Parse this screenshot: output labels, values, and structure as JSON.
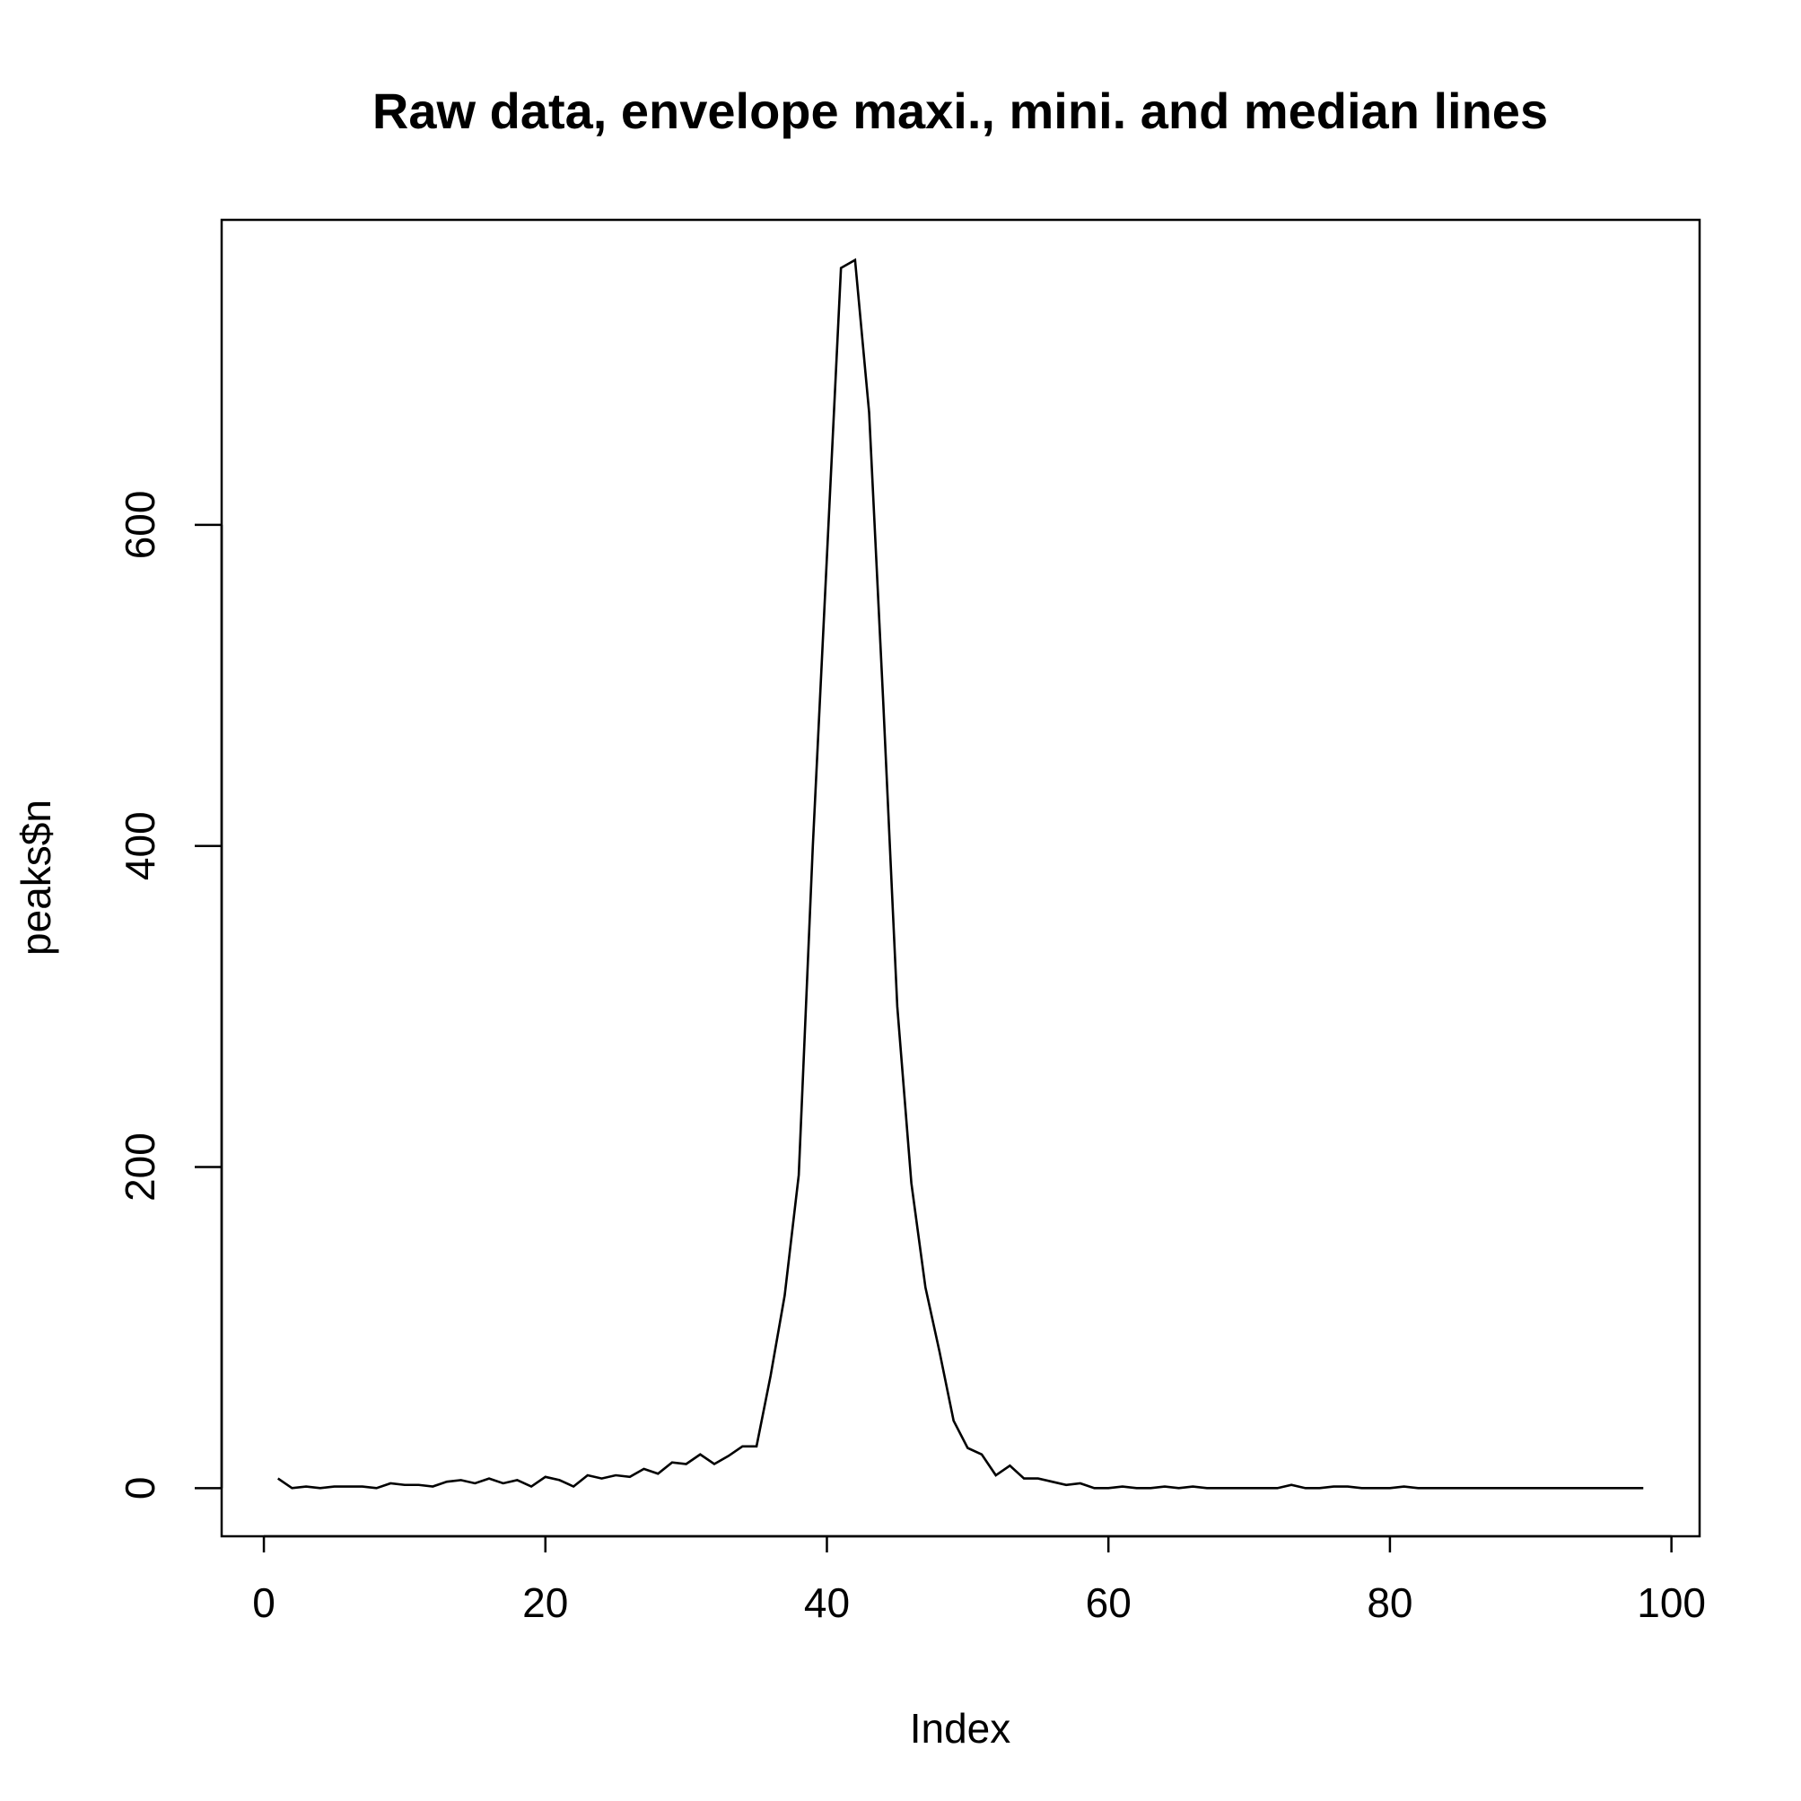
{
  "chart_data": {
    "type": "line",
    "title": "Raw data, envelope maxi., mini. and median lines",
    "xlabel": "Index",
    "ylabel": "peaks$n",
    "xlim": [
      -3,
      102
    ],
    "ylim": [
      -30,
      790
    ],
    "x_ticks": [
      0,
      20,
      40,
      60,
      80,
      100
    ],
    "y_ticks": [
      0,
      200,
      400,
      600
    ],
    "x_tick_labels": [
      "0",
      "20",
      "40",
      "60",
      "80",
      "100"
    ],
    "y_tick_labels": [
      "0",
      "200",
      "400",
      "600"
    ],
    "grid": false,
    "legend": "none",
    "line_color": "#000000",
    "series": [
      {
        "x": [
          1,
          2,
          3,
          4,
          5,
          6,
          7,
          8,
          9,
          10,
          11,
          12,
          13,
          14,
          15,
          16,
          17,
          18,
          19,
          20,
          21,
          22,
          23,
          24,
          25,
          26,
          27,
          28,
          29,
          30,
          31,
          32,
          33,
          34,
          35,
          36,
          37,
          38,
          39,
          40,
          41,
          42,
          43,
          44,
          45,
          46,
          47,
          48,
          49,
          50,
          51,
          52,
          53,
          54,
          55,
          56,
          57,
          58,
          59,
          60,
          61,
          62,
          63,
          64,
          65,
          66,
          67,
          68,
          69,
          70,
          71,
          72,
          73,
          74,
          75,
          76,
          77,
          78,
          79,
          80,
          81,
          82,
          83,
          84,
          85,
          86,
          87,
          88,
          89,
          90,
          91,
          92,
          93,
          94,
          95,
          96,
          97,
          98
        ],
        "values": [
          6,
          0,
          1,
          0,
          1,
          1,
          1,
          0,
          3,
          2,
          2,
          1,
          4,
          5,
          3,
          6,
          3,
          5,
          1,
          7,
          5,
          1,
          8,
          6,
          8,
          7,
          12,
          9,
          16,
          15,
          21,
          15,
          20,
          26,
          26,
          70,
          120,
          195,
          400,
          580,
          760,
          765,
          670,
          490,
          300,
          190,
          125,
          85,
          42,
          25,
          21,
          8,
          14,
          6,
          6,
          4,
          2,
          3,
          0,
          0,
          1,
          0,
          0,
          1,
          0,
          1,
          0,
          0,
          0,
          0,
          0,
          0,
          2,
          0,
          0,
          1,
          1,
          0,
          0,
          0,
          1,
          0,
          0,
          0,
          0,
          0,
          0,
          0,
          0,
          0,
          0,
          0,
          0,
          0,
          0,
          0,
          0,
          0
        ]
      }
    ]
  }
}
